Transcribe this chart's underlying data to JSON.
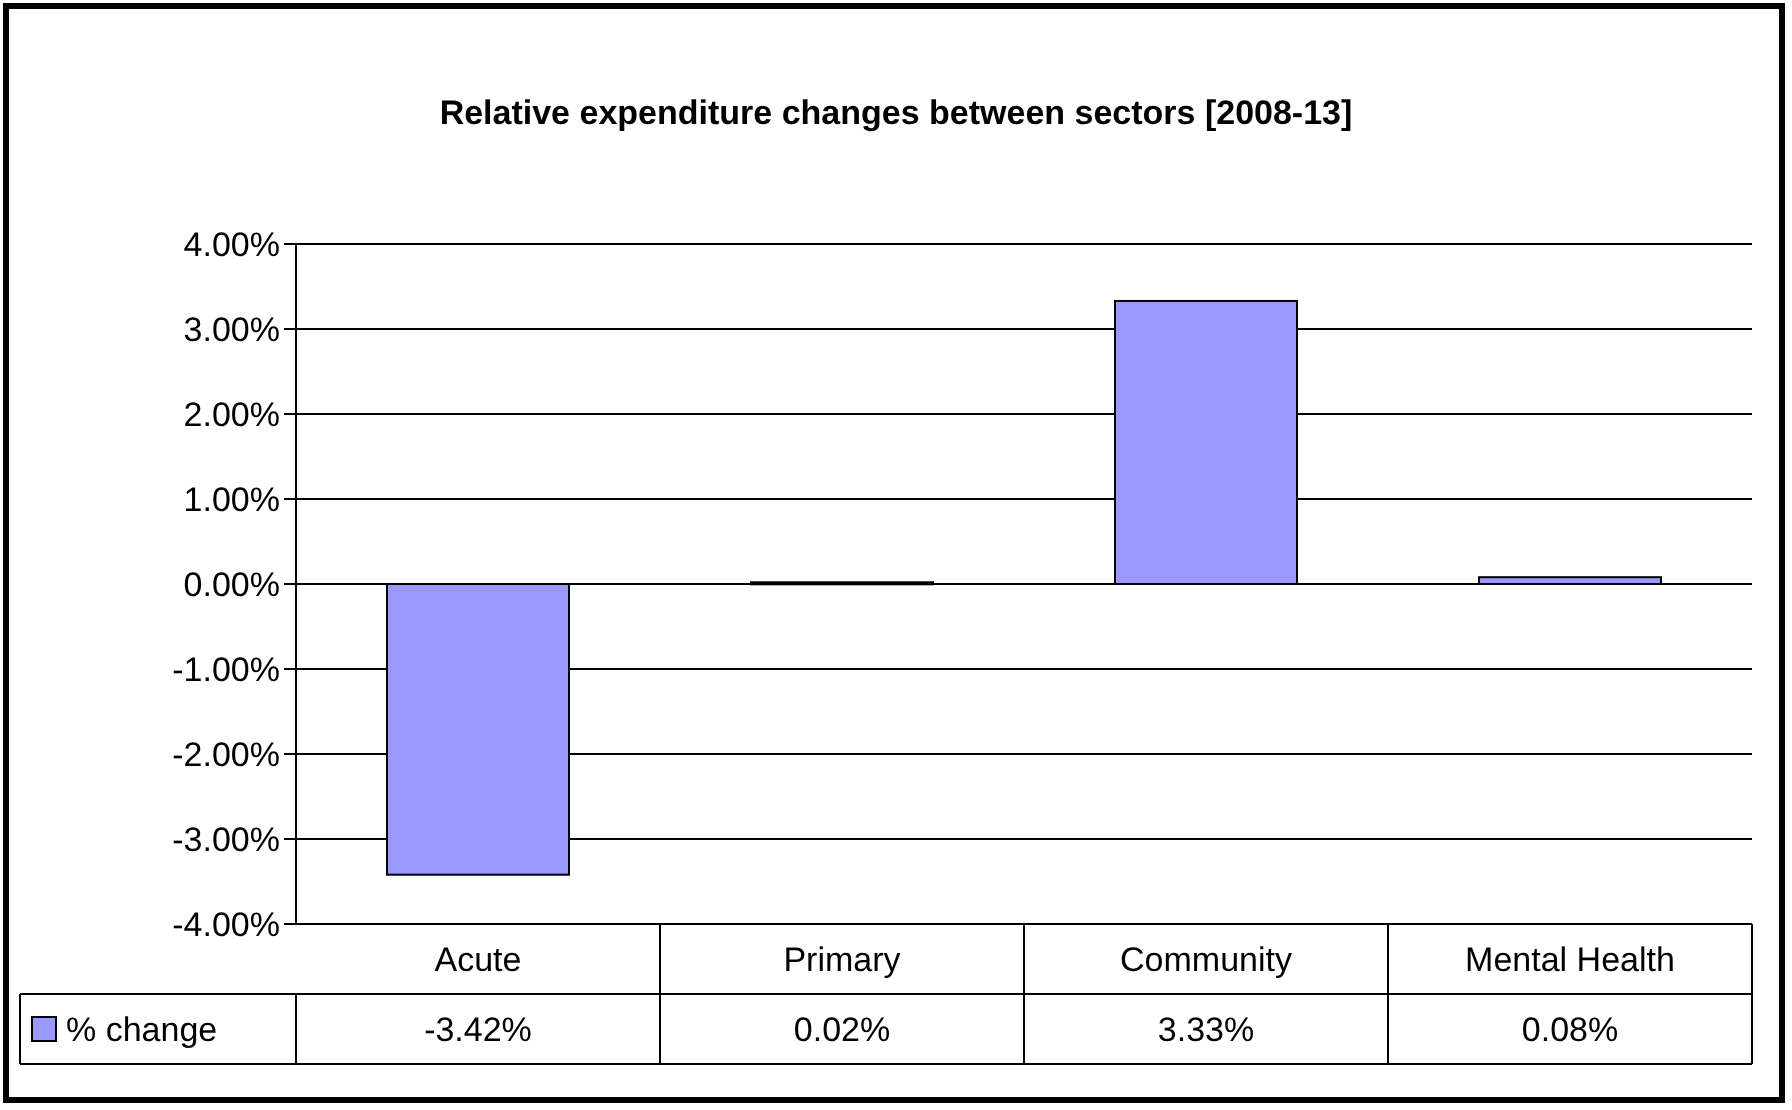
{
  "chart_data": {
    "type": "bar",
    "title": "Relative expenditure changes between sectors [2008-13]",
    "categories": [
      "Acute",
      "Primary",
      "Community",
      "Mental Health"
    ],
    "series": [
      {
        "name": "% change",
        "color": "#9999ff",
        "values": [
          -3.42,
          0.02,
          3.33,
          0.08
        ],
        "value_labels": [
          "-3.42%",
          "0.02%",
          "3.33%",
          "0.08%"
        ]
      }
    ],
    "ylim": [
      -4,
      4
    ],
    "yticks": [
      {
        "value": -4,
        "label": "-4.00%"
      },
      {
        "value": -3,
        "label": "-3.00%"
      },
      {
        "value": -2,
        "label": "-2.00%"
      },
      {
        "value": -1,
        "label": "-1.00%"
      },
      {
        "value": 0,
        "label": "0.00%"
      },
      {
        "value": 1,
        "label": "1.00%"
      },
      {
        "value": 2,
        "label": "2.00%"
      },
      {
        "value": 3,
        "label": "3.00%"
      },
      {
        "value": 4,
        "label": "4.00%"
      }
    ],
    "grid": "y",
    "legend": "bottom left"
  }
}
